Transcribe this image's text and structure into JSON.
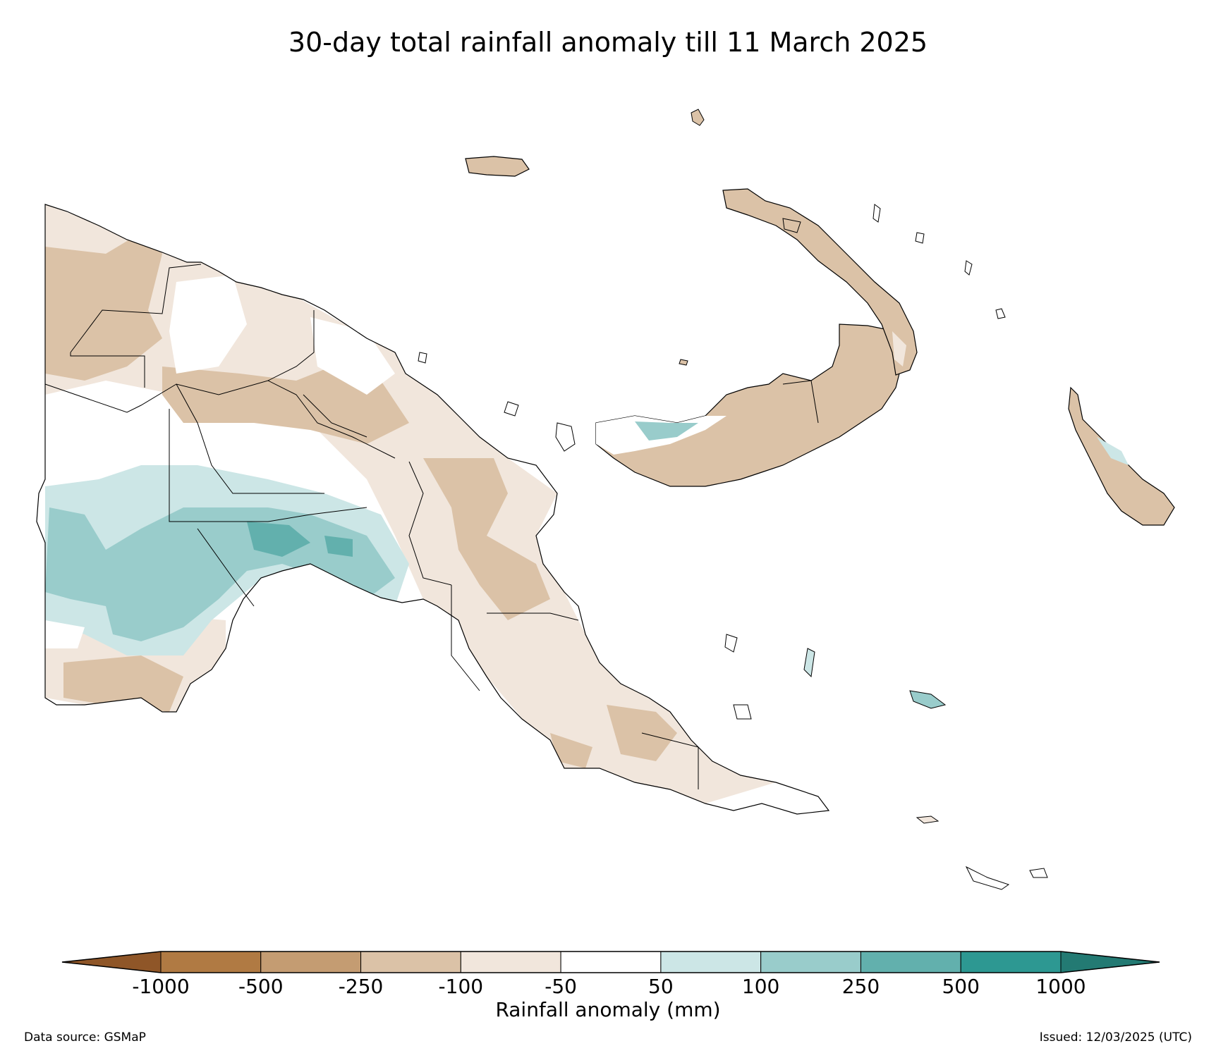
{
  "title": "30-day total rainfall anomaly till 11 March 2025",
  "colorbar": {
    "label": "Rainfall anomaly (mm)",
    "ticks": [
      "-1000",
      "-500",
      "-250",
      "-100",
      "-50",
      "50",
      "100",
      "250",
      "500",
      "1000"
    ],
    "bins": [
      {
        "color": "#8f5628"
      },
      {
        "color": "#b07a43"
      },
      {
        "color": "#c49c72"
      },
      {
        "color": "#dbc2a7"
      },
      {
        "color": "#f1e6dc"
      },
      {
        "color": "#ffffff"
      },
      {
        "color": "#cce6e6"
      },
      {
        "color": "#99cccb"
      },
      {
        "color": "#62b0ad"
      },
      {
        "color": "#2d9892"
      },
      {
        "color": "#237a73"
      }
    ]
  },
  "colors": {
    "dry_moderate": "#dbc2a7",
    "dry_light": "#f1e6dc",
    "wet_light": "#cce6e6",
    "wet_moderate": "#99cccb",
    "wet_strong": "#62b0ad",
    "border": "#000000"
  },
  "footer": {
    "source": "Data source: GSMaP",
    "issued": "Issued: 12/03/2025 (UTC)"
  }
}
